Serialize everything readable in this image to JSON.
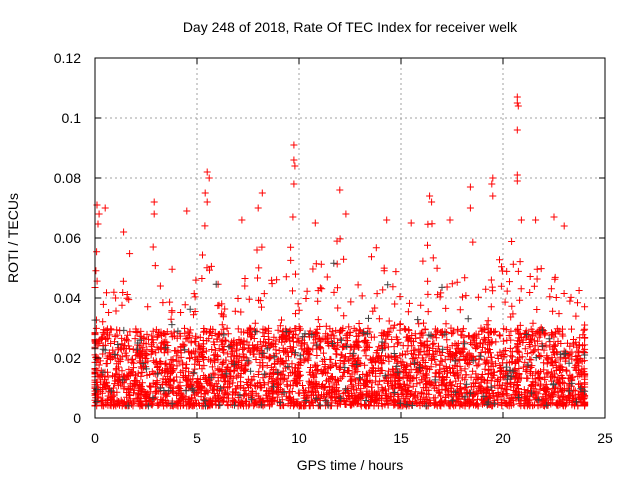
{
  "chart_data": {
    "type": "scatter",
    "title": "Day 248 of 2018, Rate Of TEC Index for receiver welk",
    "xlabel": "GPS time / hours",
    "ylabel": "ROTI / TECUs",
    "xlim": [
      0,
      25
    ],
    "ylim": [
      0,
      0.12
    ],
    "xticks": [
      "0",
      "5",
      "10",
      "15",
      "20",
      "25"
    ],
    "yticks": [
      "0",
      "0.02",
      "0.04",
      "0.06",
      "0.08",
      "0.1",
      "0.12"
    ],
    "grid": true,
    "marker": "+",
    "colors": {
      "primary": "#ff0000",
      "secondary": "#404040"
    },
    "envelope_step_hours": 0.5,
    "upper_envelope": [
      0.065,
      0.05,
      0.045,
      0.055,
      0.035,
      0.045,
      0.06,
      0.05,
      0.055,
      0.045,
      0.06,
      0.07,
      0.05,
      0.045,
      0.04,
      0.05,
      0.06,
      0.055,
      0.05,
      0.06,
      0.06,
      0.05,
      0.055,
      0.055,
      0.06,
      0.05,
      0.055,
      0.055,
      0.06,
      0.055,
      0.045,
      0.05,
      0.06,
      0.065,
      0.05,
      0.045,
      0.05,
      0.06,
      0.045,
      0.05,
      0.055,
      0.06,
      0.055,
      0.05,
      0.055,
      0.06,
      0.05,
      0.045,
      0.04
    ],
    "lower_bound": 0.004,
    "peaks": [
      [
        20.7,
        0.107
      ],
      [
        20.7,
        0.105
      ],
      [
        20.75,
        0.104
      ],
      [
        20.7,
        0.096
      ],
      [
        20.7,
        0.081
      ],
      [
        20.7,
        0.079
      ],
      [
        9.75,
        0.091
      ],
      [
        9.75,
        0.086
      ],
      [
        9.8,
        0.084
      ],
      [
        9.75,
        0.078
      ],
      [
        9.7,
        0.067
      ],
      [
        5.5,
        0.082
      ],
      [
        5.6,
        0.08
      ],
      [
        5.4,
        0.075
      ],
      [
        5.5,
        0.072
      ],
      [
        19.5,
        0.08
      ],
      [
        19.45,
        0.078
      ],
      [
        19.5,
        0.074
      ],
      [
        16.4,
        0.074
      ],
      [
        16.5,
        0.072
      ],
      [
        18.4,
        0.077
      ],
      [
        18.4,
        0.07
      ],
      [
        12.0,
        0.076
      ],
      [
        8.2,
        0.075
      ],
      [
        2.9,
        0.072
      ],
      [
        2.9,
        0.068
      ],
      [
        0.1,
        0.071
      ],
      [
        0.2,
        0.068
      ],
      [
        0.5,
        0.07
      ],
      [
        1.4,
        0.062
      ],
      [
        4.5,
        0.069
      ],
      [
        7.2,
        0.066
      ],
      [
        8.0,
        0.07
      ],
      [
        10.8,
        0.065
      ],
      [
        12.3,
        0.068
      ],
      [
        14.3,
        0.066
      ],
      [
        15.5,
        0.065
      ],
      [
        17.4,
        0.066
      ],
      [
        21.6,
        0.066
      ],
      [
        22.5,
        0.067
      ],
      [
        23.0,
        0.064
      ],
      [
        20.9,
        0.066
      ]
    ]
  }
}
